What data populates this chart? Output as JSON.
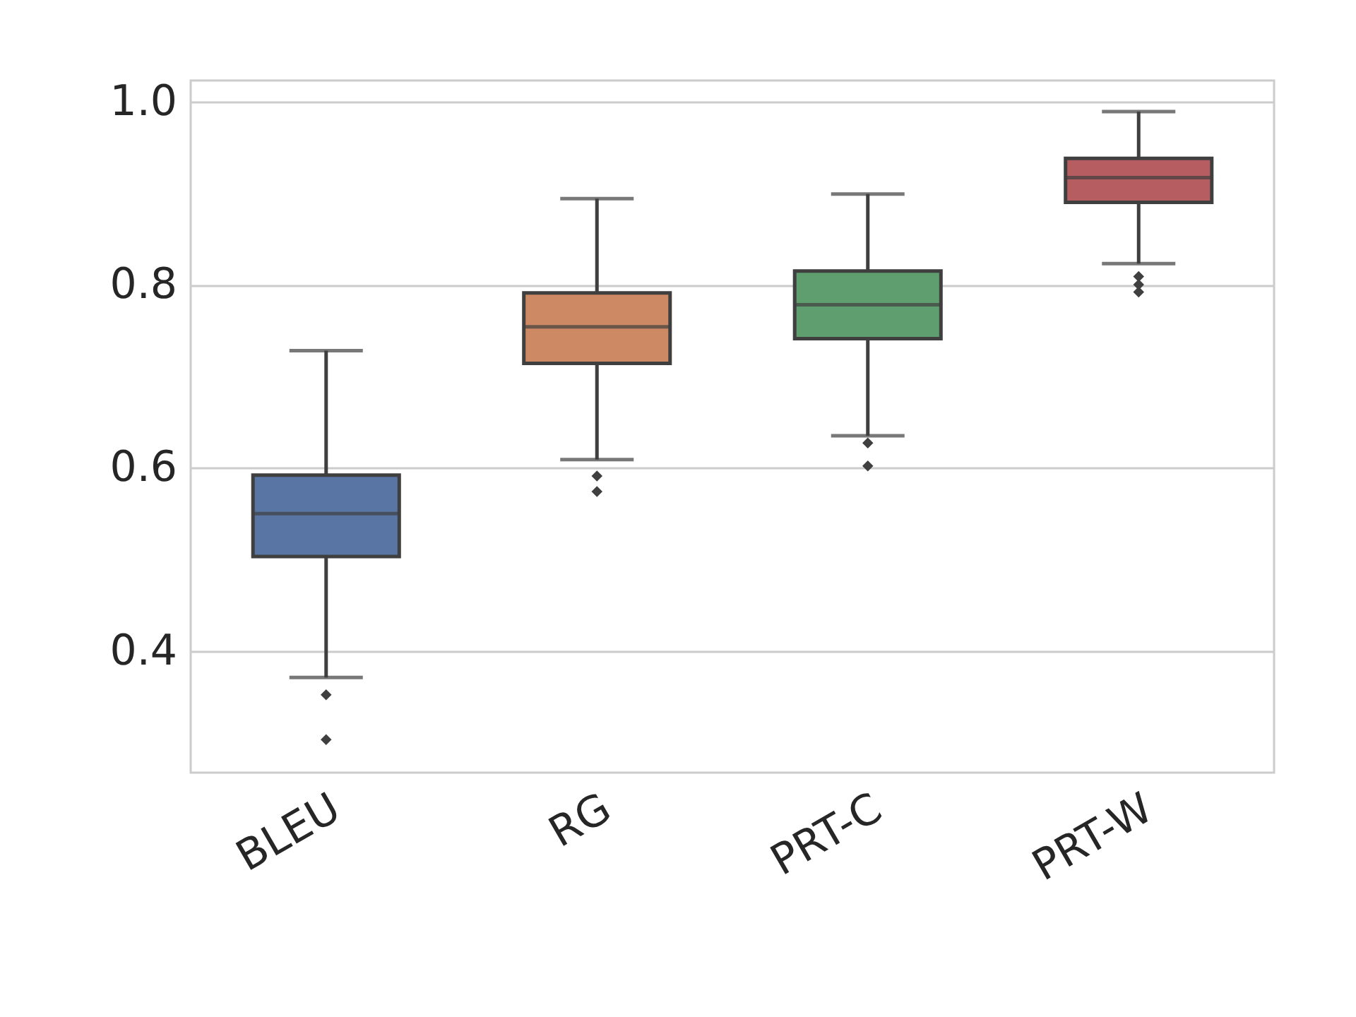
{
  "chart_data": {
    "type": "box",
    "categories": [
      "BLEU",
      "RG",
      "PRT-C",
      "PRT-W"
    ],
    "colors": [
      "#5975a4",
      "#cc8963",
      "#5f9e6e",
      "#b55d60"
    ],
    "boxes": [
      {
        "low": 0.371,
        "q1": 0.503,
        "median": 0.55,
        "q3": 0.592,
        "high": 0.728,
        "outliers": [
          0.352,
          0.303
        ]
      },
      {
        "low": 0.609,
        "q1": 0.714,
        "median": 0.754,
        "q3": 0.791,
        "high": 0.894,
        "outliers": [
          0.591,
          0.574
        ]
      },
      {
        "low": 0.635,
        "q1": 0.741,
        "median": 0.778,
        "q3": 0.815,
        "high": 0.899,
        "outliers": [
          0.627,
          0.602
        ]
      },
      {
        "low": 0.823,
        "q1": 0.89,
        "median": 0.917,
        "q3": 0.938,
        "high": 0.989,
        "outliers": [
          0.809,
          0.8,
          0.792
        ]
      }
    ],
    "ylim": [
      0.267,
      1.023
    ],
    "yticks": [
      {
        "value": 0.4,
        "label": "0.4"
      },
      {
        "value": 0.6,
        "label": "0.6"
      },
      {
        "value": 0.8,
        "label": "0.8"
      },
      {
        "value": 1.0,
        "label": "1.0"
      }
    ],
    "grid": "y"
  }
}
